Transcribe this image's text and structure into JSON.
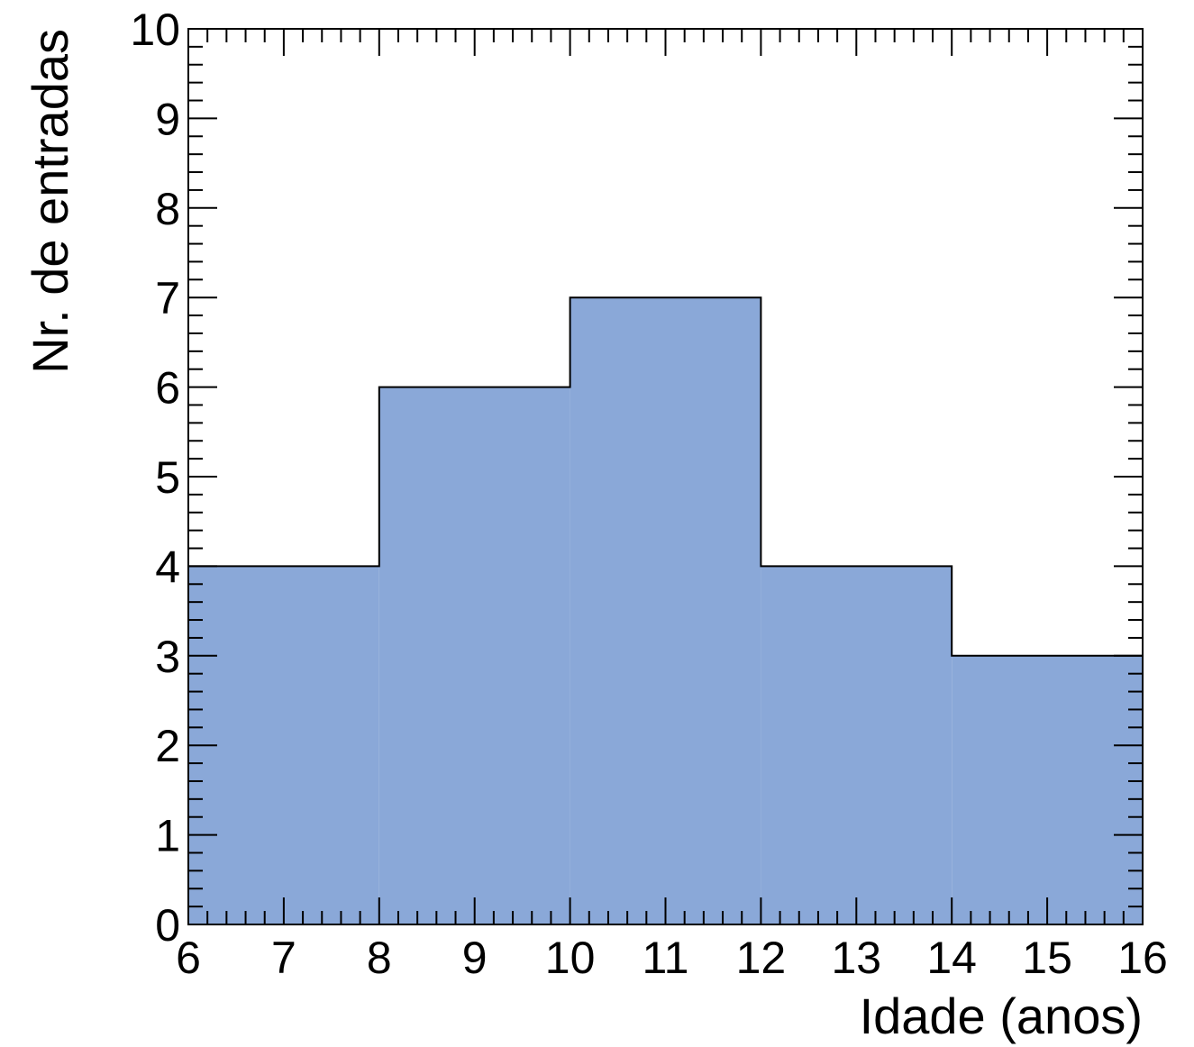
{
  "chart_data": {
    "type": "bar",
    "style": "histogram",
    "bins": [
      {
        "x0": 6,
        "x1": 8,
        "value": 4
      },
      {
        "x0": 8,
        "x1": 10,
        "value": 6
      },
      {
        "x0": 10,
        "x1": 12,
        "value": 7
      },
      {
        "x0": 12,
        "x1": 14,
        "value": 4
      },
      {
        "x0": 14,
        "x1": 16,
        "value": 3
      }
    ],
    "xlabel": "Idade (anos)",
    "ylabel": "Nr. de entradas",
    "xlim": [
      6,
      16
    ],
    "ylim": [
      0,
      10
    ],
    "x_major_ticks": [
      6,
      7,
      8,
      9,
      10,
      11,
      12,
      13,
      14,
      15,
      16
    ],
    "x_tick_labels": [
      "6",
      "7",
      "8",
      "9",
      "10",
      "11",
      "12",
      "13",
      "14",
      "15",
      "16"
    ],
    "y_major_ticks": [
      0,
      1,
      2,
      3,
      4,
      5,
      6,
      7,
      8,
      9,
      10
    ],
    "y_tick_labels": [
      "0",
      "1",
      "2",
      "3",
      "4",
      "5",
      "6",
      "7",
      "8",
      "9",
      "10"
    ],
    "fill_color": "#8aa8d8",
    "line_color": "#000000",
    "grid": false,
    "legend": "none"
  }
}
